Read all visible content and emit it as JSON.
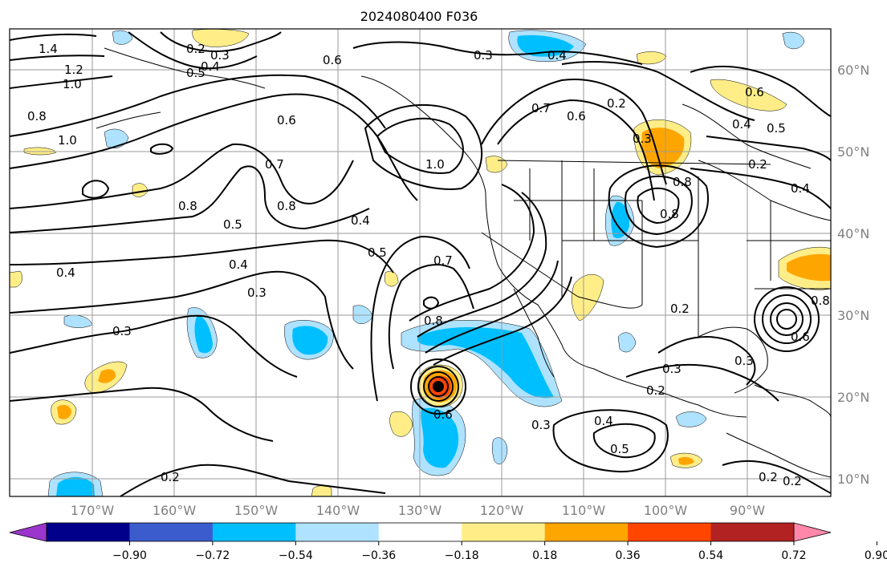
{
  "title": "2024080400 F036",
  "lon_labels": [
    "170°W",
    "160°W",
    "150°W",
    "140°W",
    "130°W",
    "120°W",
    "110°W",
    "100°W",
    "90°W"
  ],
  "lat_labels": [
    "60°N",
    "50°N",
    "40°N",
    "30°N",
    "20°N",
    "10°N"
  ],
  "colorbar": {
    "ticks": [
      "−0.90",
      "−0.72",
      "−0.54",
      "−0.36",
      "−0.18",
      "0.18",
      "0.36",
      "0.54",
      "0.72",
      "0.90"
    ],
    "colors": [
      "#9a36cc",
      "#00008b",
      "#3a5ccc",
      "#00bfff",
      "#aee2ff",
      "#ffffff",
      "#ffee88",
      "#ffa500",
      "#ff4500",
      "#b22222",
      "#ff88aa"
    ]
  },
  "contour_labels": [
    {
      "text": "1.4"
    },
    {
      "text": "1.2"
    },
    {
      "text": "1.0"
    },
    {
      "text": "0.8"
    },
    {
      "text": "1.0"
    },
    {
      "text": "0.2"
    },
    {
      "text": "0.3"
    },
    {
      "text": "0.4"
    },
    {
      "text": "0.5"
    },
    {
      "text": "0.6"
    },
    {
      "text": "0.3"
    },
    {
      "text": "0.4"
    },
    {
      "text": "0.6"
    },
    {
      "text": "0.7"
    },
    {
      "text": "1.0"
    },
    {
      "text": "0.8"
    },
    {
      "text": "0.5"
    },
    {
      "text": "0.8"
    },
    {
      "text": "0.4"
    },
    {
      "text": "0.4"
    },
    {
      "text": "0.4"
    },
    {
      "text": "0.3"
    },
    {
      "text": "0.3"
    },
    {
      "text": "0.5"
    },
    {
      "text": "0.7"
    },
    {
      "text": "0.8"
    },
    {
      "text": "0.6"
    },
    {
      "text": "0.2"
    },
    {
      "text": "0.7"
    },
    {
      "text": "0.6"
    },
    {
      "text": "0.2"
    },
    {
      "text": "0.3"
    },
    {
      "text": "0.8"
    },
    {
      "text": "0.8"
    },
    {
      "text": "0.2"
    },
    {
      "text": "0.3"
    },
    {
      "text": "0.2"
    },
    {
      "text": "0.3"
    },
    {
      "text": "0.4"
    },
    {
      "text": "0.5"
    },
    {
      "text": "0.2"
    },
    {
      "text": "0.2"
    },
    {
      "text": "0.3"
    },
    {
      "text": "0.6"
    },
    {
      "text": "0.4"
    },
    {
      "text": "0.5"
    },
    {
      "text": "0.8"
    },
    {
      "text": "0.2"
    },
    {
      "text": "0.4"
    },
    {
      "text": "0.6"
    }
  ]
}
